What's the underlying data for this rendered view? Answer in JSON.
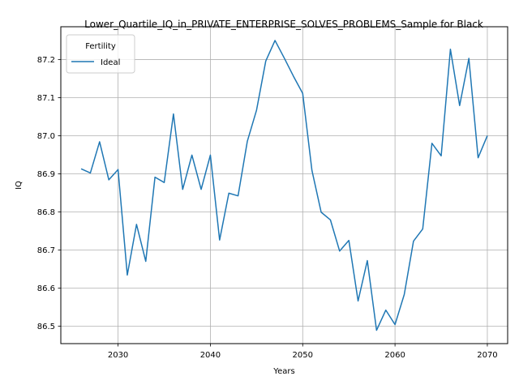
{
  "chart_data": {
    "type": "line",
    "title": "Lower_Quartile_IQ_in_PRIVATE_ENTERPRISE_SOLVES_PROBLEMS_Sample for Black",
    "xlabel": "Years",
    "ylabel": "IQ",
    "xlim": [
      2023.8,
      2072.2
    ],
    "ylim": [
      86.454,
      87.286
    ],
    "xticks": [
      2030,
      2040,
      2050,
      2060,
      2070
    ],
    "yticks": [
      86.5,
      86.6,
      86.7,
      86.8,
      86.9,
      87.0,
      87.1,
      87.2
    ],
    "ytick_labels": [
      "86.5",
      "86.6",
      "86.7",
      "86.8",
      "86.9",
      "87.0",
      "87.1",
      "87.2"
    ],
    "grid": true,
    "legend": {
      "title": "Fertility",
      "placement": "top-left"
    },
    "series": [
      {
        "name": "Ideal",
        "color": "#1f77b4",
        "x": [
          2026,
          2027,
          2028,
          2029,
          2030,
          2031,
          2032,
          2033,
          2034,
          2035,
          2036,
          2037,
          2038,
          2039,
          2040,
          2041,
          2042,
          2043,
          2044,
          2045,
          2046,
          2047,
          2048,
          2049,
          2050,
          2051,
          2052,
          2053,
          2054,
          2055,
          2056,
          2057,
          2058,
          2059,
          2060,
          2061,
          2062,
          2063,
          2064,
          2065,
          2066,
          2067,
          2068,
          2069,
          2070
        ],
        "y": [
          86.913,
          86.902,
          86.984,
          86.884,
          86.911,
          86.634,
          86.767,
          86.67,
          86.891,
          86.877,
          87.057,
          86.859,
          86.949,
          86.859,
          86.949,
          86.726,
          86.849,
          86.842,
          86.985,
          87.067,
          87.196,
          87.25,
          87.204,
          87.156,
          87.111,
          86.909,
          86.799,
          86.779,
          86.697,
          86.725,
          86.566,
          86.672,
          86.489,
          86.542,
          86.504,
          86.583,
          86.723,
          86.755,
          86.98,
          86.947,
          87.227,
          87.079,
          87.203,
          86.942,
          87.0
        ]
      }
    ]
  }
}
